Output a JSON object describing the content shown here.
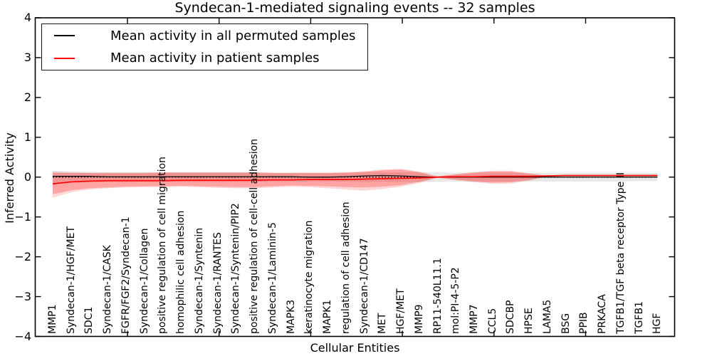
{
  "figure": {
    "title": "Syndecan-1-mediated signaling events -- 32 samples",
    "xlabel": "Cellular Entities",
    "ylabel": "Inferred Activity"
  },
  "legend": {
    "items": [
      {
        "label": "Mean activity in all permuted samples",
        "color": "#000000"
      },
      {
        "label": "Mean activity in patient samples",
        "color": "#ff0000"
      }
    ]
  },
  "chart_data": {
    "type": "line",
    "title": "Syndecan-1-mediated signaling events -- 32 samples",
    "xlabel": "Cellular Entities",
    "ylabel": "Inferred Activity",
    "ylim": [
      -4,
      4
    ],
    "ytick_values": [
      4,
      3,
      2,
      1,
      0,
      -1,
      -2,
      -3,
      -4
    ],
    "ytick_labels": [
      "4",
      "3",
      "2",
      "1",
      "0",
      "−1",
      "−2",
      "−3",
      "−4"
    ],
    "grid": false,
    "legend_position": "upper left",
    "x_major_ticks": [
      5.08,
      10.08,
      15.08,
      20.08,
      25.08,
      30.08
    ],
    "categories": [
      "MMP1",
      "Syndecan-1/HGF/MET",
      "SDC1",
      "Syndecan-1/CASK",
      "FGFR/FGF2/Syndecan-1",
      "Syndecan-1/Collagen",
      "positive regulation of cell migration",
      "homophilic cell adhesion",
      "Syndecan-1/Syntenin",
      "Syndecan-1/RANTES",
      "Syndecan-1/Syntenin/PIP2",
      "positive regulation of cell-cell adhesion",
      "Syndecan-1/Laminin-5",
      "MAPK3",
      "keratinocyte migration",
      "MAPK1",
      "regulation of cell adhesion",
      "Syndecan-1/CD147",
      "MET",
      "HGF/MET",
      "MMP9",
      "RP11-540L11.1",
      "mol:PI-4-5-P2",
      "MMP7",
      "CCL5",
      "SDCBP",
      "HPSE",
      "LAMA5",
      "BSG",
      "PPIB",
      "PRKACA",
      "TGFB1/TGF beta receptor Type II",
      "TGFB1",
      "HGF"
    ],
    "reference_line": {
      "y": 0,
      "style": "dotted",
      "color": "#000000"
    },
    "series": [
      {
        "name": "Mean activity in all permuted samples",
        "color": "#000000",
        "style": "solid",
        "width": 1.2,
        "values": [
          0.02,
          0.02,
          0.02,
          0.01,
          0.01,
          0.01,
          0.01,
          0.01,
          0.01,
          0.01,
          0.01,
          0.01,
          0.01,
          0.01,
          0.0,
          0.0,
          0.01,
          0.03,
          0.04,
          0.03,
          0.01,
          0.0,
          0.0,
          0.0,
          0.0,
          0.0,
          0.0,
          0.0,
          0.0,
          0.0,
          0.0,
          0.0,
          0.0,
          0.0
        ]
      },
      {
        "name": "Mean activity in patient samples",
        "color": "#ff0000",
        "style": "solid",
        "width": 1.7,
        "values": [
          -0.17,
          -0.12,
          -0.1,
          -0.09,
          -0.09,
          -0.09,
          -0.09,
          -0.08,
          -0.08,
          -0.08,
          -0.08,
          -0.08,
          -0.07,
          -0.07,
          -0.06,
          -0.06,
          -0.06,
          -0.05,
          -0.04,
          -0.03,
          -0.02,
          0.0,
          0.01,
          0.01,
          0.02,
          0.02,
          0.02,
          0.03,
          0.04,
          0.04,
          0.04,
          0.04,
          0.04,
          0.04
        ]
      }
    ],
    "bands": [
      {
        "name": "permuted-samples-std-band",
        "color": "#000000",
        "opacity": 0.09,
        "upper": [
          0.16,
          0.14,
          0.13,
          0.12,
          0.12,
          0.12,
          0.12,
          0.12,
          0.12,
          0.12,
          0.12,
          0.12,
          0.11,
          0.11,
          0.11,
          0.11,
          0.11,
          0.12,
          0.12,
          0.12,
          0.12,
          0.12,
          0.11,
          0.11,
          0.11,
          0.11,
          0.11,
          0.11,
          0.11,
          0.11,
          0.11,
          0.11,
          0.1,
          0.1
        ],
        "lower": [
          -0.16,
          -0.14,
          -0.13,
          -0.12,
          -0.12,
          -0.12,
          -0.12,
          -0.12,
          -0.12,
          -0.12,
          -0.12,
          -0.12,
          -0.11,
          -0.11,
          -0.11,
          -0.11,
          -0.11,
          -0.12,
          -0.12,
          -0.12,
          -0.12,
          -0.12,
          -0.11,
          -0.11,
          -0.11,
          -0.11,
          -0.11,
          -0.11,
          -0.11,
          -0.11,
          -0.11,
          -0.11,
          -0.1,
          -0.1
        ]
      },
      {
        "name": "patient-samples-std-band-outer",
        "color": "#ff0000",
        "opacity": 0.16,
        "upper": [
          0.13,
          0.12,
          0.11,
          0.11,
          0.11,
          0.11,
          0.12,
          0.12,
          0.12,
          0.12,
          0.12,
          0.12,
          0.11,
          0.11,
          0.11,
          0.11,
          0.12,
          0.15,
          0.19,
          0.21,
          0.14,
          0.02,
          0.08,
          0.13,
          0.16,
          0.16,
          0.1,
          0.04,
          0.05,
          0.05,
          0.05,
          0.05,
          0.05,
          0.05
        ],
        "lower": [
          -0.52,
          -0.38,
          -0.31,
          -0.28,
          -0.26,
          -0.25,
          -0.25,
          -0.24,
          -0.25,
          -0.27,
          -0.28,
          -0.28,
          -0.26,
          -0.24,
          -0.25,
          -0.28,
          -0.31,
          -0.34,
          -0.3,
          -0.24,
          -0.15,
          -0.02,
          -0.08,
          -0.13,
          -0.17,
          -0.16,
          -0.09,
          0.02,
          0.03,
          0.03,
          0.03,
          0.03,
          0.03,
          0.03
        ]
      },
      {
        "name": "patient-samples-std-band-inner",
        "color": "#ff0000",
        "opacity": 0.24,
        "upper": [
          0.11,
          0.1,
          0.1,
          0.1,
          0.1,
          0.1,
          0.11,
          0.11,
          0.11,
          0.11,
          0.11,
          0.11,
          0.1,
          0.1,
          0.1,
          0.1,
          0.11,
          0.13,
          0.17,
          0.19,
          0.12,
          0.01,
          0.06,
          0.11,
          0.14,
          0.14,
          0.08,
          0.03,
          0.05,
          0.05,
          0.05,
          0.05,
          0.05,
          0.05
        ],
        "lower": [
          -0.43,
          -0.33,
          -0.28,
          -0.26,
          -0.24,
          -0.23,
          -0.23,
          -0.22,
          -0.23,
          -0.24,
          -0.25,
          -0.25,
          -0.23,
          -0.21,
          -0.22,
          -0.23,
          -0.25,
          -0.26,
          -0.24,
          -0.2,
          -0.12,
          -0.01,
          -0.06,
          -0.11,
          -0.14,
          -0.13,
          -0.07,
          0.01,
          0.03,
          0.03,
          0.03,
          0.03,
          0.03,
          0.03
        ]
      }
    ]
  }
}
